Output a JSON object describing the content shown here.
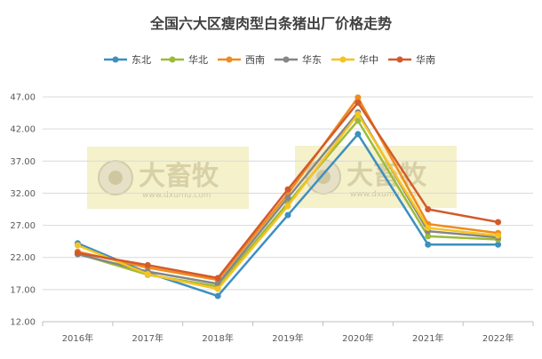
{
  "watermark": {
    "brand": "大畜牧",
    "url": "www.dxumu.com"
  },
  "chart_data": {
    "type": "line",
    "title": "全国六大区瘦肉型白条猪出厂价格走势",
    "categories": [
      "2016年",
      "2017年",
      "2018年",
      "2019年",
      "2020年",
      "2021年",
      "2022年"
    ],
    "ylim": [
      12,
      47
    ],
    "yticks": [
      "12.00",
      "17.00",
      "22.00",
      "27.00",
      "32.00",
      "37.00",
      "42.00",
      "47.00"
    ],
    "legend_position": "top",
    "grid": true,
    "series": [
      {
        "name": "东北",
        "color": "#3d8fc0",
        "values": [
          24.2,
          19.6,
          16.0,
          28.6,
          41.2,
          24.0,
          24.0
        ]
      },
      {
        "name": "华北",
        "color": "#9cbb3a",
        "values": [
          22.6,
          19.3,
          17.5,
          30.5,
          43.3,
          25.3,
          24.8
        ]
      },
      {
        "name": "西南",
        "color": "#ef8c1e",
        "values": [
          22.9,
          20.4,
          18.5,
          31.9,
          46.9,
          27.2,
          25.8
        ]
      },
      {
        "name": "华东",
        "color": "#868686",
        "values": [
          22.5,
          19.8,
          17.9,
          31.3,
          44.6,
          26.1,
          25.1
        ]
      },
      {
        "name": "华中",
        "color": "#f7c322",
        "values": [
          23.9,
          19.4,
          17.1,
          30.0,
          44.3,
          26.6,
          25.4
        ]
      },
      {
        "name": "华南",
        "color": "#d35a2a",
        "values": [
          22.7,
          20.8,
          18.8,
          32.6,
          46.1,
          29.5,
          27.5
        ]
      }
    ]
  }
}
